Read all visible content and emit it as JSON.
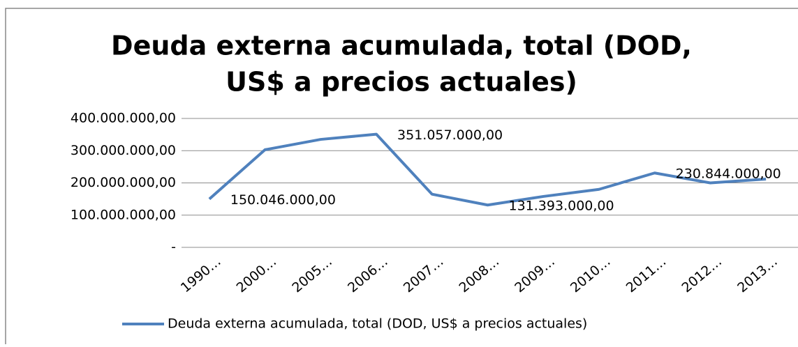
{
  "chart_data": {
    "type": "line",
    "title": [
      "Deuda externa acumulada, total (DOD,",
      "US$ a precios actuales)"
    ],
    "categories": [
      "1990…",
      "2000…",
      "2005…",
      "2006…",
      "2007…",
      "2008…",
      "2009…",
      "2010…",
      "2011…",
      "2012…",
      "2013…"
    ],
    "series": [
      {
        "name": "Deuda externa acumulada, total (DOD, US$ a precios actuales)",
        "color": "#4f81bd",
        "values": [
          150046000,
          303000000,
          335000000,
          351057000,
          165000000,
          131393000,
          158000000,
          180000000,
          230844000,
          200000000,
          212000000
        ],
        "value_labels": [
          "150.046.000,00",
          null,
          null,
          "351.057.000,00",
          null,
          "131.393.000,00",
          null,
          null,
          "230.844.000,00",
          null,
          null
        ]
      }
    ],
    "ylim": [
      0,
      400000000
    ],
    "yticks": [
      {
        "value": 0,
        "label": "-"
      },
      {
        "value": 100000000,
        "label": "100.000.000,00"
      },
      {
        "value": 200000000,
        "label": "200.000.000,00"
      },
      {
        "value": 300000000,
        "label": "300.000.000,00"
      },
      {
        "value": 400000000,
        "label": "400.000.000,00"
      }
    ],
    "grid": true,
    "legend": "bottom"
  }
}
